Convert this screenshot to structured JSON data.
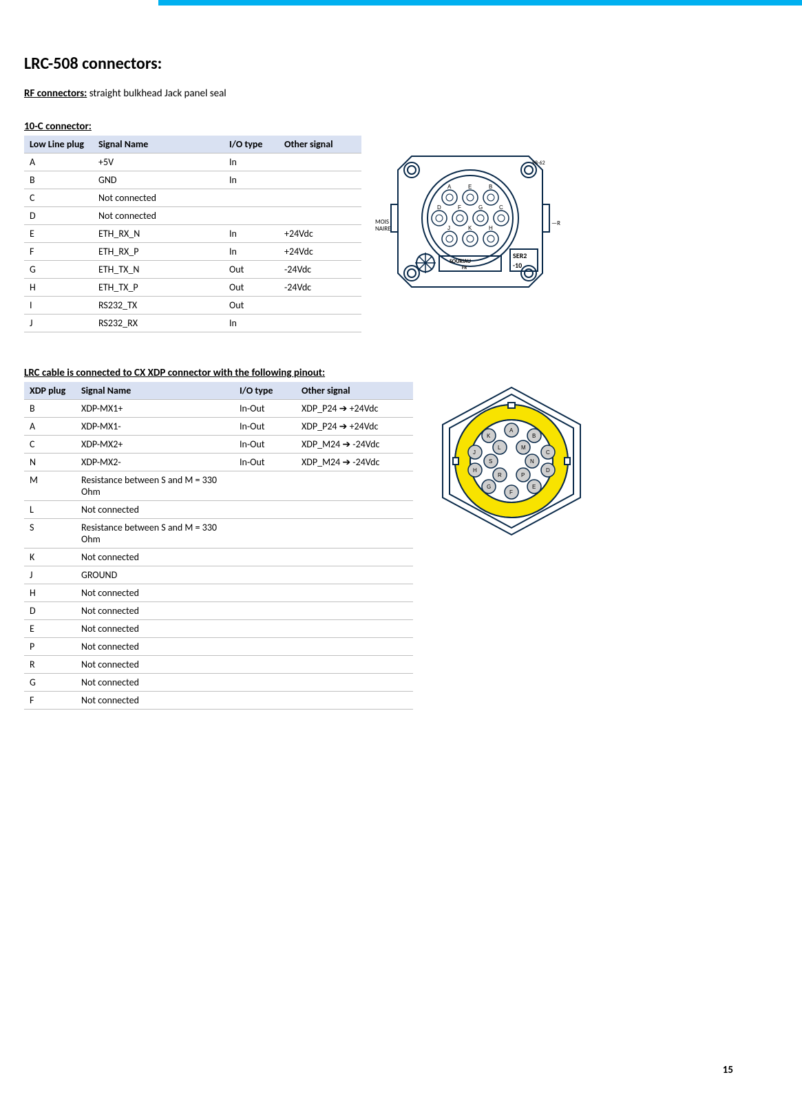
{
  "colors": {
    "topbar": "#00b0f0",
    "header_bg": "#d9e1f2",
    "row_border": "#bfbfbf",
    "text": "#000000",
    "diagram_stroke": "#0a2a4a",
    "diagram_yellow": "#f8e300",
    "diagram_gray": "#cfcfcf"
  },
  "page_number": "15",
  "title": "LRC-508 connectors:",
  "rf_label": "RF connectors:",
  "rf_text": " straight bulkhead Jack panel seal",
  "section1_heading": "10-C connector:",
  "table1": {
    "columns": [
      "Low Line plug",
      "Signal Name",
      "I/O type",
      "Other signal"
    ],
    "rows": [
      [
        "A",
        "+5V",
        "In",
        ""
      ],
      [
        "B",
        "GND",
        "In",
        ""
      ],
      [
        "C",
        "Not connected",
        "",
        ""
      ],
      [
        "D",
        "Not connected",
        "",
        ""
      ],
      [
        "E",
        "ETH_RX_N",
        "In",
        "+24Vdc"
      ],
      [
        "F",
        "ETH_RX_P",
        "In",
        "+24Vdc"
      ],
      [
        "G",
        "ETH_TX_N",
        "Out",
        "-24Vdc"
      ],
      [
        "H",
        "ETH_TX_P",
        "Out",
        "-24Vdc"
      ],
      [
        "I",
        "RS232_TX",
        "Out",
        ""
      ],
      [
        "J",
        "RS232_RX",
        "In",
        ""
      ]
    ]
  },
  "diagram1_labels": [
    "A",
    "B",
    "C",
    "D",
    "E",
    "F",
    "G",
    "H",
    "J",
    "K"
  ],
  "diagram1_side_labels": {
    "left": "MOIS\nNAIRE",
    "right_top": "SER2",
    "right_bottom": "-10",
    "bottom": "SOURIAU\nFR"
  },
  "section2_heading": "LRC cable is connected to CX XDP connector with the following pinout:",
  "table2": {
    "columns": [
      "XDP plug",
      "Signal Name",
      "I/O type",
      "Other signal"
    ],
    "rows": [
      [
        "B",
        "XDP-MX1+",
        "In-Out",
        "XDP_P24 ➔ +24Vdc"
      ],
      [
        "A",
        "XDP-MX1-",
        "In-Out",
        "XDP_P24 ➔ +24Vdc"
      ],
      [
        "C",
        "XDP-MX2+",
        "In-Out",
        "XDP_M24 ➔ -24Vdc"
      ],
      [
        "N",
        "XDP-MX2-",
        "In-Out",
        "XDP_M24 ➔ -24Vdc"
      ],
      [
        "M",
        "Resistance between S and M = 330 Ohm",
        "",
        ""
      ],
      [
        "L",
        "Not connected",
        "",
        ""
      ],
      [
        "S",
        "Resistance between S and M = 330 Ohm",
        "",
        ""
      ],
      [
        "K",
        "Not connected",
        "",
        ""
      ],
      [
        "J",
        "GROUND",
        "",
        ""
      ],
      [
        "H",
        "Not connected",
        "",
        ""
      ],
      [
        "D",
        "Not connected",
        "",
        ""
      ],
      [
        "E",
        "Not connected",
        "",
        ""
      ],
      [
        "P",
        "Not connected",
        "",
        ""
      ],
      [
        "R",
        "Not connected",
        "",
        ""
      ],
      [
        "G",
        "Not connected",
        "",
        ""
      ],
      [
        "F",
        "Not connected",
        "",
        ""
      ]
    ]
  },
  "diagram2_labels": [
    "A",
    "B",
    "C",
    "D",
    "E",
    "F",
    "G",
    "H",
    "J",
    "K",
    "L",
    "M",
    "N",
    "P",
    "R",
    "S"
  ]
}
